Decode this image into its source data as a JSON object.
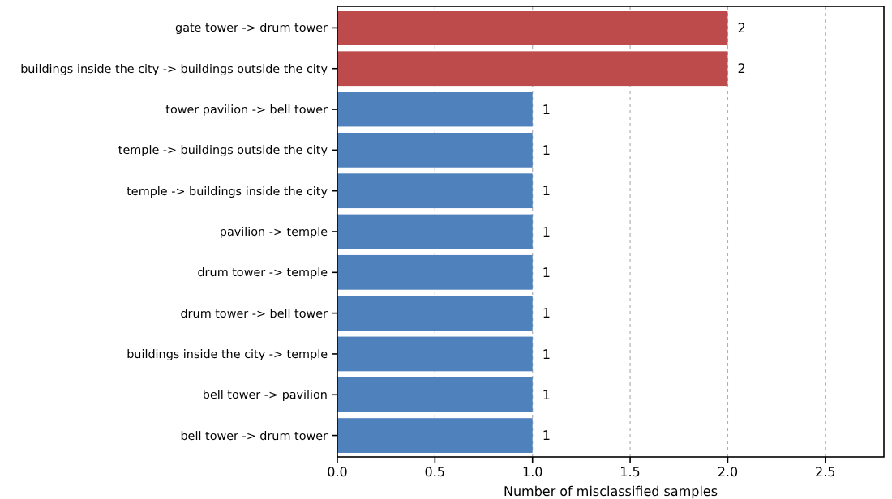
{
  "chart_data": {
    "type": "bar",
    "orientation": "horizontal",
    "categories": [
      "gate tower -> drum tower",
      "buildings inside the city -> buildings outside the city",
      "tower pavilion -> bell tower",
      "temple -> buildings outside the city",
      "temple -> buildings inside the city",
      "pavilion -> temple",
      "drum tower -> temple",
      "drum tower -> bell tower",
      "buildings inside the city -> temple",
      "bell tower -> pavilion",
      "bell tower -> drum tower"
    ],
    "values": [
      2,
      2,
      1,
      1,
      1,
      1,
      1,
      1,
      1,
      1,
      1
    ],
    "colors": [
      "#bd4b4b",
      "#bd4b4b",
      "#4f81bd",
      "#4f81bd",
      "#4f81bd",
      "#4f81bd",
      "#4f81bd",
      "#4f81bd",
      "#4f81bd",
      "#4f81bd",
      "#4f81bd"
    ],
    "xlim": [
      0,
      2.8
    ],
    "xticks": [
      {
        "value": 0,
        "label": "0.0"
      },
      {
        "value": 0.5,
        "label": "0.5"
      },
      {
        "value": 1,
        "label": "1.0"
      },
      {
        "value": 1.5,
        "label": "1.5"
      },
      {
        "value": 2,
        "label": "2.0"
      },
      {
        "value": 2.5,
        "label": "2.5"
      }
    ],
    "xlabel": "Number of misclassified samples",
    "grid": "x",
    "data_labels": true
  }
}
